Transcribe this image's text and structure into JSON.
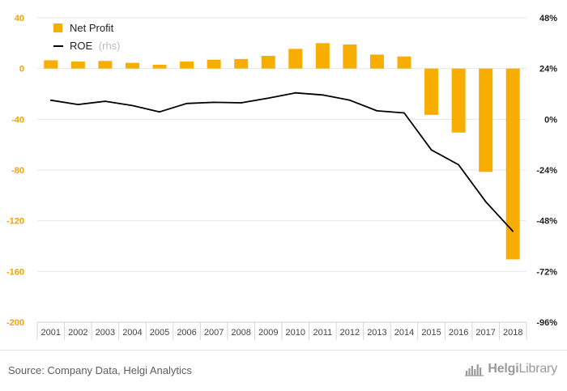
{
  "chart_data": {
    "type": "bar",
    "categories": [
      "2001",
      "2002",
      "2003",
      "2004",
      "2005",
      "2006",
      "2007",
      "2008",
      "2009",
      "2010",
      "2011",
      "2012",
      "2013",
      "2014",
      "2015",
      "2016",
      "2017",
      "2018"
    ],
    "series": [
      {
        "name": "Net Profit",
        "type": "bar",
        "axis": "left",
        "color": "#f8ae00",
        "values": [
          6.5,
          5.5,
          6.0,
          4.5,
          3.0,
          5.5,
          7.0,
          7.5,
          10.0,
          15.5,
          20.0,
          19.0,
          11.0,
          9.5,
          -36.5,
          -50.5,
          -81.5,
          -150.5
        ]
      },
      {
        "name": "ROE",
        "name_suffix": "(rhs)",
        "type": "line",
        "axis": "right",
        "color": "#000000",
        "values": [
          9.0,
          7.0,
          8.5,
          6.5,
          3.5,
          7.5,
          8.0,
          7.8,
          10.0,
          12.5,
          11.5,
          9.0,
          4.0,
          3.0,
          -14.5,
          -21.5,
          -39.0,
          -53.0
        ]
      }
    ],
    "y_left": {
      "min": -200,
      "max": 40,
      "step": 40,
      "ticks": [
        "40",
        "0",
        "-40",
        "-80",
        "-120",
        "-160",
        "-200"
      ],
      "color": "#f0a500"
    },
    "y_right": {
      "min": -96,
      "max": 48,
      "step": 24,
      "ticks": [
        "48%",
        "24%",
        "0%",
        "-24%",
        "-48%",
        "-72%",
        "-96%"
      ],
      "color": "#222222"
    },
    "grid": true,
    "legend": "top-left"
  },
  "footer": {
    "source": "Source: Company Data, Helgi Analytics",
    "brand_bold": "Helgi",
    "brand_light": "Library"
  },
  "colors": {
    "bar": "#f8ae00",
    "line": "#000000",
    "grid": "#e6e6e6",
    "left_axis_text": "#f0a500",
    "right_axis_text": "#222222",
    "category_text": "#444444",
    "legend_muted": "#bbbbbb"
  },
  "icons": {
    "brand_logo": "helgi-library-logo-icon"
  }
}
